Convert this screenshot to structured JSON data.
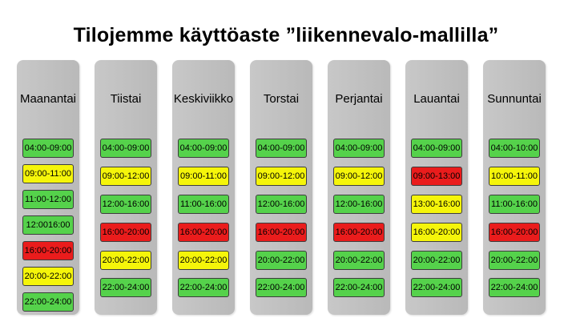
{
  "title": "Tilojemme käyttöaste ”liikennevalo-mallilla”",
  "legend_colors": {
    "green": "#55d24b",
    "yellow": "#f5f50a",
    "red": "#ea1c1c"
  },
  "days": [
    {
      "name": "Maanantai",
      "slots": [
        {
          "time": "04:00-09:00",
          "status": "green"
        },
        {
          "time": "09:00-11:00",
          "status": "yellow"
        },
        {
          "time": "11:00-12:00",
          "status": "green"
        },
        {
          "time": "12:0016:00",
          "status": "green"
        },
        {
          "time": "16:00-20:00",
          "status": "red"
        },
        {
          "time": "20:00-22:00",
          "status": "yellow"
        },
        {
          "time": "22:00-24:00",
          "status": "green"
        }
      ]
    },
    {
      "name": "Tiistai",
      "slots": [
        {
          "time": "04:00-09:00",
          "status": "green"
        },
        {
          "time": "09:00-12:00",
          "status": "yellow"
        },
        {
          "time": "12:00-16:00",
          "status": "green"
        },
        {
          "time": "16:00-20:00",
          "status": "red"
        },
        {
          "time": "20:00-22:00",
          "status": "yellow"
        },
        {
          "time": "22:00-24:00",
          "status": "green"
        }
      ]
    },
    {
      "name": "Keskiviikko",
      "slots": [
        {
          "time": "04:00-09:00",
          "status": "green"
        },
        {
          "time": "09:00-11:00",
          "status": "yellow"
        },
        {
          "time": "11:00-16:00",
          "status": "green"
        },
        {
          "time": "16:00-20:00",
          "status": "red"
        },
        {
          "time": "20:00-22:00",
          "status": "yellow"
        },
        {
          "time": "22:00-24:00",
          "status": "green"
        }
      ]
    },
    {
      "name": "Torstai",
      "slots": [
        {
          "time": "04:00-09:00",
          "status": "green"
        },
        {
          "time": "09:00-12:00",
          "status": "yellow"
        },
        {
          "time": "12:00-16:00",
          "status": "green"
        },
        {
          "time": "16:00-20:00",
          "status": "red"
        },
        {
          "time": "20:00-22:00",
          "status": "green"
        },
        {
          "time": "22:00-24:00",
          "status": "green"
        }
      ]
    },
    {
      "name": "Perjantai",
      "slots": [
        {
          "time": "04:00-09:00",
          "status": "green"
        },
        {
          "time": "09:00-12:00",
          "status": "yellow"
        },
        {
          "time": "12:00-16:00",
          "status": "green"
        },
        {
          "time": "16:00-20:00",
          "status": "red"
        },
        {
          "time": "20:00-22:00",
          "status": "green"
        },
        {
          "time": "22:00-24:00",
          "status": "green"
        }
      ]
    },
    {
      "name": "Lauantai",
      "slots": [
        {
          "time": "04:00-09:00",
          "status": "green"
        },
        {
          "time": "09:00-13:00",
          "status": "red"
        },
        {
          "time": "13:00-16:00",
          "status": "yellow"
        },
        {
          "time": "16:00-20:00",
          "status": "yellow"
        },
        {
          "time": "20:00-22:00",
          "status": "green"
        },
        {
          "time": "22:00-24:00",
          "status": "green"
        }
      ]
    },
    {
      "name": "Sunnuntai",
      "slots": [
        {
          "time": "04:00-10:00",
          "status": "green"
        },
        {
          "time": "10:00-11:00",
          "status": "yellow"
        },
        {
          "time": "11:00-16:00",
          "status": "green"
        },
        {
          "time": "16:00-20:00",
          "status": "red"
        },
        {
          "time": "20:00-22:00",
          "status": "green"
        },
        {
          "time": "22:00-24:00",
          "status": "green"
        }
      ]
    }
  ]
}
